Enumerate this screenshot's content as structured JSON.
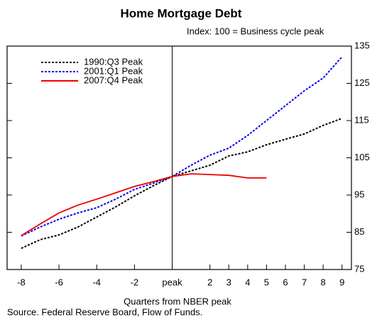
{
  "chart_data": {
    "type": "line",
    "title": "Home Mortgage Debt",
    "subtitle": "Index: 100 = Business cycle peak",
    "xlabel": "Quarters from NBER peak",
    "source": "Source. Federal Reserve Board, Flow of Funds.",
    "x": [
      -8,
      -7,
      -6,
      -5,
      -4,
      -3,
      -2,
      -1,
      0,
      1,
      2,
      3,
      4,
      5,
      6,
      7,
      8,
      9
    ],
    "series": [
      {
        "name": "1990:Q3 Peak",
        "color": "#000000",
        "dash": "dotted",
        "values": [
          80.7,
          83,
          84.3,
          86.4,
          89.1,
          91.8,
          94.8,
          97.5,
          100,
          101.5,
          103,
          105.5,
          106.6,
          108.5,
          110,
          111.4,
          113.7,
          115.6
        ]
      },
      {
        "name": "2001:Q1 Peak",
        "color": "#0000ee",
        "dash": "dotted",
        "values": [
          84,
          86.4,
          88.5,
          90.2,
          91.6,
          93.9,
          96.5,
          98.2,
          100,
          103,
          105.7,
          107.6,
          111,
          115,
          119,
          123,
          126.4,
          132.1
        ]
      },
      {
        "name": "2007:Q4 Peak",
        "color": "#ee0000",
        "dash": "solid",
        "values": [
          84.1,
          87.2,
          90.2,
          92.3,
          93.9,
          95.6,
          97.3,
          98.6,
          100,
          100.7,
          100.5,
          100.3,
          99.6,
          99.6,
          null,
          null,
          null,
          null
        ]
      }
    ],
    "xlim": [
      -8.75,
      9.5
    ],
    "xticks": [
      -8,
      -6,
      -4,
      -2,
      {
        "value": 0,
        "label": "peak"
      },
      2,
      3,
      4,
      5,
      6,
      7,
      8,
      9
    ],
    "ylim": [
      75,
      135
    ],
    "yticks": [
      75,
      85,
      95,
      105,
      115,
      125,
      135
    ],
    "vline": 0,
    "legend": "upper left"
  }
}
